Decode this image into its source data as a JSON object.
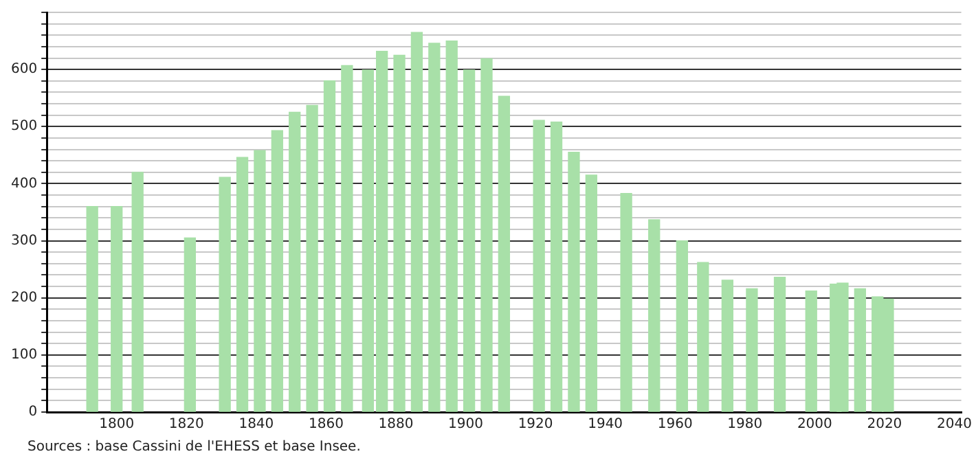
{
  "chart_data": {
    "type": "bar",
    "color": "#a8e0a8",
    "x": [
      1793,
      1800,
      1806,
      1821,
      1831,
      1836,
      1841,
      1846,
      1851,
      1856,
      1861,
      1866,
      1872,
      1876,
      1881,
      1886,
      1891,
      1896,
      1901,
      1906,
      1911,
      1921,
      1926,
      1931,
      1936,
      1946,
      1954,
      1962,
      1968,
      1975,
      1982,
      1990,
      1999,
      2006,
      2008,
      2013,
      2018,
      2021
    ],
    "values": [
      360,
      360,
      420,
      305,
      411,
      446,
      458,
      493,
      525,
      537,
      580,
      607,
      599,
      632,
      625,
      665,
      646,
      650,
      599,
      619,
      553,
      511,
      508,
      455,
      415,
      383,
      337,
      300,
      262,
      231,
      216,
      236,
      212,
      224,
      226,
      216,
      202,
      198
    ],
    "xlim": [
      1780,
      2042
    ],
    "xticks": [
      1800,
      1820,
      1840,
      1860,
      1880,
      1900,
      1920,
      1940,
      1960,
      1980,
      2000,
      2020,
      2040
    ],
    "ylim": [
      0,
      700
    ],
    "yticks": [
      0,
      {
        "value": 20,
        "label": null
      },
      {
        "value": 40,
        "label": null
      },
      {
        "value": 60,
        "label": null
      },
      {
        "value": 80,
        "label": null
      },
      100,
      {
        "value": 120,
        "label": null
      },
      {
        "value": 140,
        "label": null
      },
      {
        "value": 160,
        "label": null
      },
      {
        "value": 180,
        "label": null
      },
      200,
      {
        "value": 220,
        "label": null
      },
      {
        "value": 240,
        "label": null
      },
      {
        "value": 260,
        "label": null
      },
      {
        "value": 280,
        "label": null
      },
      300,
      {
        "value": 320,
        "label": null
      },
      {
        "value": 340,
        "label": null
      },
      {
        "value": 360,
        "label": null
      },
      {
        "value": 380,
        "label": null
      },
      400,
      {
        "value": 420,
        "label": null
      },
      {
        "value": 440,
        "label": null
      },
      {
        "value": 460,
        "label": null
      },
      {
        "value": 480,
        "label": null
      },
      500,
      {
        "value": 520,
        "label": null
      },
      {
        "value": 540,
        "label": null
      },
      {
        "value": 560,
        "label": null
      },
      {
        "value": 580,
        "label": null
      },
      600,
      {
        "value": 620,
        "label": null
      },
      {
        "value": 640,
        "label": null
      },
      {
        "value": 660,
        "label": null
      },
      {
        "value": 680,
        "label": null
      },
      {
        "value": 700,
        "label": null
      }
    ],
    "grid": "y",
    "legend": false,
    "annotations": [
      "Sources : base Cassini de l'EHESS et base Insee."
    ]
  }
}
